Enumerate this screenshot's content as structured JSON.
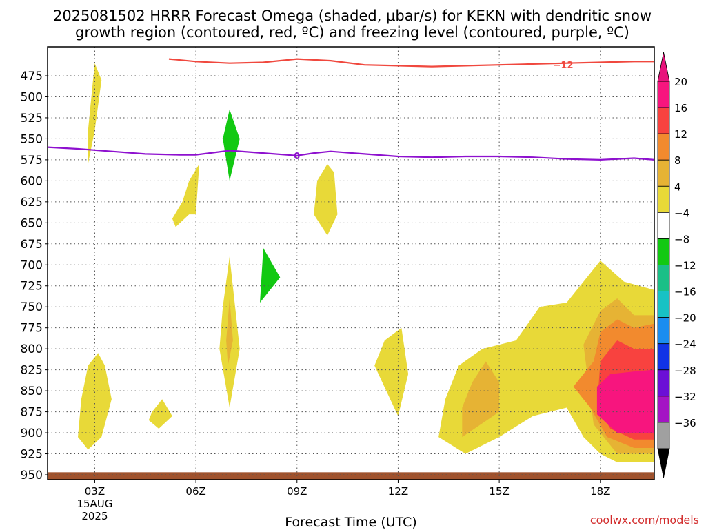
{
  "title_line1": "2025081502 HRRR Forecast Omega (shaded, μbar/s) for KEKN with dendritic snow",
  "title_line2": "growth region (contoured, red, ºC) and freezing level (contoured, purple, ºC)",
  "xlabel": "Forecast Time (UTC)",
  "credit": "coolwx.com/models",
  "chart_data": {
    "type": "heatmap",
    "title": "2025081502 HRRR Forecast Omega (shaded, μbar/s) for KEKN with dendritic snow growth region (contoured, red, ºC) and freezing level (contoured, purple, ºC)",
    "xlabel": "Forecast Time (UTC)",
    "ylabel": "",
    "x_axis": {
      "units": "forecast hour since 2025-08-15 00Z",
      "xlim": [
        1.6,
        19.6
      ],
      "ticks": [
        {
          "x": 3,
          "label": "03Z",
          "sub": [
            "15AUG",
            "2025"
          ]
        },
        {
          "x": 6,
          "label": "06Z"
        },
        {
          "x": 9,
          "label": "09Z"
        },
        {
          "x": 12,
          "label": "12Z"
        },
        {
          "x": 15,
          "label": "15Z"
        },
        {
          "x": 18,
          "label": "18Z"
        }
      ]
    },
    "y_axis": {
      "units": "hPa",
      "inverted": true,
      "ticks": [
        475,
        500,
        525,
        550,
        575,
        600,
        625,
        650,
        675,
        700,
        725,
        750,
        775,
        800,
        825,
        850,
        875,
        900,
        925,
        950
      ]
    },
    "grid": true,
    "colorbar": {
      "labels": [
        "20",
        "16",
        "12",
        "8",
        "4",
        "−4",
        "−8",
        "−12",
        "−16",
        "−20",
        "−24",
        "−28",
        "−32",
        "−36"
      ],
      "colors": [
        "#f7157e",
        "#f8423f",
        "#f28a2e",
        "#e6b334",
        "#e8d938",
        "#ffffff",
        "#12c912",
        "#1bbf87",
        "#18c2c4",
        "#1b8df0",
        "#1133e6",
        "#6b0fd6",
        "#a414c4",
        "#a0a0a0"
      ],
      "top_arrow_color": "#e8137c",
      "bottom_arrow_color": "#000000"
    },
    "omega_regions": [
      {
        "level": "4-8",
        "color": "#e8d938",
        "points": [
          [
            2.8,
            580
          ],
          [
            3.0,
            540
          ],
          [
            3.2,
            480
          ],
          [
            3.0,
            460
          ],
          [
            2.8,
            540
          ]
        ]
      },
      {
        "level": "4-8",
        "color": "#e8d938",
        "points": [
          [
            2.5,
            905
          ],
          [
            2.8,
            920
          ],
          [
            3.2,
            905
          ],
          [
            3.5,
            860
          ],
          [
            3.3,
            820
          ],
          [
            3.1,
            805
          ],
          [
            2.8,
            820
          ],
          [
            2.6,
            860
          ]
        ]
      },
      {
        "level": "4-8",
        "color": "#e8d938",
        "points": [
          [
            5.4,
            655
          ],
          [
            5.8,
            640
          ],
          [
            6.0,
            640
          ],
          [
            6.1,
            580
          ],
          [
            5.8,
            600
          ],
          [
            5.6,
            625
          ],
          [
            5.3,
            645
          ]
        ]
      },
      {
        "level": "4-8",
        "color": "#e8d938",
        "points": [
          [
            4.6,
            885
          ],
          [
            4.9,
            895
          ],
          [
            5.3,
            880
          ],
          [
            5.0,
            860
          ],
          [
            4.7,
            875
          ]
        ]
      },
      {
        "level": "4-8",
        "color": "#e8d938",
        "points": [
          [
            6.7,
            800
          ],
          [
            7.0,
            870
          ],
          [
            7.3,
            800
          ],
          [
            7.0,
            690
          ],
          [
            6.8,
            750
          ]
        ]
      },
      {
        "level": "8-12",
        "color": "#e6b334",
        "points": [
          [
            6.95,
            820
          ],
          [
            7.1,
            790
          ],
          [
            7.0,
            740
          ],
          [
            6.9,
            790
          ]
        ]
      },
      {
        "level": "4-8",
        "color": "#e8d938",
        "points": [
          [
            9.5,
            640
          ],
          [
            9.9,
            665
          ],
          [
            10.2,
            640
          ],
          [
            10.1,
            590
          ],
          [
            9.9,
            580
          ],
          [
            9.6,
            600
          ]
        ]
      },
      {
        "level": "4-8",
        "color": "#e8d938",
        "points": [
          [
            11.3,
            820
          ],
          [
            12.0,
            880
          ],
          [
            12.3,
            830
          ],
          [
            12.1,
            775
          ],
          [
            11.6,
            790
          ]
        ]
      },
      {
        "level": "4-8",
        "color": "#e8d938",
        "points": [
          [
            13.2,
            905
          ],
          [
            14.0,
            925
          ],
          [
            15.0,
            905
          ],
          [
            16.0,
            880
          ],
          [
            17.0,
            870
          ],
          [
            17.5,
            905
          ],
          [
            18.0,
            925
          ],
          [
            18.5,
            935
          ],
          [
            19.6,
            935
          ],
          [
            19.6,
            730
          ],
          [
            18.7,
            720
          ],
          [
            18.0,
            695
          ],
          [
            17.0,
            745
          ],
          [
            16.2,
            750
          ],
          [
            15.5,
            790
          ],
          [
            14.5,
            800
          ],
          [
            13.8,
            820
          ],
          [
            13.4,
            860
          ]
        ]
      },
      {
        "level": "8-12",
        "color": "#e6b334",
        "points": [
          [
            13.9,
            905
          ],
          [
            15.0,
            875
          ],
          [
            15.0,
            840
          ],
          [
            14.6,
            815
          ],
          [
            14.2,
            840
          ],
          [
            13.9,
            870
          ]
        ]
      },
      {
        "level": "8-12",
        "color": "#e6b334",
        "points": [
          [
            17.8,
            890
          ],
          [
            18.5,
            925
          ],
          [
            19.6,
            925
          ],
          [
            19.6,
            760
          ],
          [
            19.0,
            760
          ],
          [
            18.5,
            740
          ],
          [
            18.0,
            755
          ],
          [
            17.5,
            795
          ]
        ]
      },
      {
        "level": "12-16",
        "color": "#f28a2e",
        "points": [
          [
            17.2,
            845
          ],
          [
            17.7,
            870
          ],
          [
            18.2,
            905
          ],
          [
            19.0,
            918
          ],
          [
            19.6,
            918
          ],
          [
            19.6,
            770
          ],
          [
            19.0,
            775
          ],
          [
            18.5,
            765
          ],
          [
            18.0,
            780
          ],
          [
            17.8,
            815
          ]
        ]
      },
      {
        "level": "16-20",
        "color": "#f8423f",
        "points": [
          [
            17.9,
            870
          ],
          [
            18.3,
            895
          ],
          [
            19.0,
            908
          ],
          [
            19.6,
            908
          ],
          [
            19.6,
            800
          ],
          [
            19.0,
            800
          ],
          [
            18.5,
            790
          ],
          [
            18.0,
            815
          ]
        ]
      },
      {
        "level": "≥20",
        "color": "#f7157e",
        "points": [
          [
            17.9,
            878
          ],
          [
            18.5,
            900
          ],
          [
            19.6,
            900
          ],
          [
            19.6,
            825
          ],
          [
            19.0,
            827
          ],
          [
            18.3,
            830
          ],
          [
            17.9,
            845
          ]
        ]
      },
      {
        "level": "-4 to -8",
        "color": "#12c912",
        "points": [
          [
            6.8,
            550
          ],
          [
            7.0,
            600
          ],
          [
            7.3,
            550
          ],
          [
            7.0,
            515
          ]
        ]
      },
      {
        "level": "-4 to -8",
        "color": "#12c912",
        "points": [
          [
            8.0,
            680
          ],
          [
            7.9,
            745
          ],
          [
            8.5,
            715
          ]
        ]
      }
    ],
    "contours": [
      {
        "name": "-12",
        "color": "#f0483e",
        "label": "−12",
        "label_at": [
          16.9,
          462
        ],
        "points": [
          [
            5.2,
            455
          ],
          [
            6.0,
            458
          ],
          [
            7.0,
            460
          ],
          [
            8.0,
            459
          ],
          [
            9.0,
            455
          ],
          [
            10.0,
            457
          ],
          [
            11.0,
            462
          ],
          [
            12.0,
            463
          ],
          [
            13.0,
            464
          ],
          [
            14.0,
            463
          ],
          [
            15.0,
            462
          ],
          [
            16.0,
            461
          ],
          [
            17.0,
            460
          ],
          [
            18.0,
            459
          ],
          [
            19.0,
            458
          ],
          [
            19.6,
            458
          ]
        ]
      },
      {
        "name": "0",
        "color": "#8e10cf",
        "label": "0",
        "label_at": [
          9.0,
          570
        ],
        "points": [
          [
            1.6,
            560
          ],
          [
            2.5,
            562
          ],
          [
            3.5,
            565
          ],
          [
            4.5,
            568
          ],
          [
            5.5,
            569
          ],
          [
            6.0,
            569
          ],
          [
            7.0,
            564
          ],
          [
            8.0,
            567
          ],
          [
            9.0,
            570
          ],
          [
            9.5,
            567
          ],
          [
            10.0,
            565
          ],
          [
            11.0,
            568
          ],
          [
            12.0,
            571
          ],
          [
            13.0,
            572
          ],
          [
            14.0,
            571
          ],
          [
            15.0,
            571
          ],
          [
            16.0,
            572
          ],
          [
            17.0,
            574
          ],
          [
            18.0,
            575
          ],
          [
            19.0,
            573
          ],
          [
            19.6,
            575
          ]
        ]
      }
    ],
    "terrain_top_hPa": 947
  }
}
